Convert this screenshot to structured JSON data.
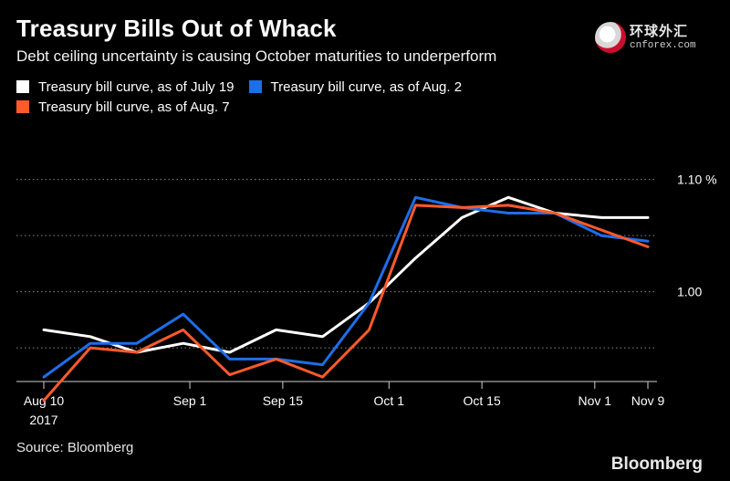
{
  "header": {
    "title": "Treasury Bills Out of Whack",
    "subtitle": "Debt ceiling uncertainty is causing October maturities to underperform"
  },
  "watermark": {
    "cn": "环球外汇",
    "en": "cnforex.com"
  },
  "footer": {
    "source": "Source: Bloomberg",
    "brand": "Bloomberg"
  },
  "chart_data": {
    "type": "line",
    "title": "Treasury Bills Out of Whack",
    "subtitle": "Debt ceiling uncertainty is causing October maturities to underperform",
    "xlabel": "",
    "ylabel": "",
    "x_ticks": [
      {
        "date": "2017-08-10",
        "label": "Aug 10",
        "sublabel": "2017"
      },
      {
        "date": "2017-09-01",
        "label": "Sep 1"
      },
      {
        "date": "2017-09-15",
        "label": "Sep 15"
      },
      {
        "date": "2017-10-01",
        "label": "Oct 1"
      },
      {
        "date": "2017-10-15",
        "label": "Oct 15"
      },
      {
        "date": "2017-11-01",
        "label": "Nov 1"
      },
      {
        "date": "2017-11-09",
        "label": "Nov 9"
      }
    ],
    "y_ticks": [
      {
        "value": 1.1,
        "label": "1.10 %"
      },
      {
        "value": 1.0,
        "label": "1.00"
      }
    ],
    "xlim": [
      "2017-08-10",
      "2017-11-09"
    ],
    "ylim": [
      0.92,
      1.12
    ],
    "grid": {
      "y_gridlines": [
        0.95,
        1.0,
        1.05,
        1.1
      ]
    },
    "legend": {
      "placement": "top-left"
    },
    "x": [
      "2017-08-10",
      "2017-08-17",
      "2017-08-24",
      "2017-08-31",
      "2017-09-07",
      "2017-09-14",
      "2017-09-21",
      "2017-09-28",
      "2017-10-05",
      "2017-10-12",
      "2017-10-19",
      "2017-10-26",
      "2017-11-02",
      "2017-11-09"
    ],
    "series": [
      {
        "name": "Treasury bill curve, as of July 19",
        "color": "#ffffff",
        "values": [
          0.966,
          0.96,
          0.946,
          0.954,
          0.946,
          0.966,
          0.96,
          0.99,
          1.03,
          1.066,
          1.084,
          1.07,
          1.066,
          1.066
        ]
      },
      {
        "name": "Treasury bill curve, as of Aug. 2",
        "color": "#1e6ee8",
        "values": [
          0.924,
          0.954,
          0.954,
          0.98,
          0.94,
          0.94,
          0.935,
          0.99,
          1.084,
          1.075,
          1.07,
          1.07,
          1.05,
          1.045
        ]
      },
      {
        "name": "Treasury bill curve, as of Aug. 7",
        "color": "#ff5a2c",
        "values": [
          0.903,
          0.95,
          0.946,
          0.966,
          0.926,
          0.94,
          0.924,
          0.966,
          1.077,
          1.075,
          1.077,
          1.07,
          1.055,
          1.04
        ]
      }
    ]
  }
}
